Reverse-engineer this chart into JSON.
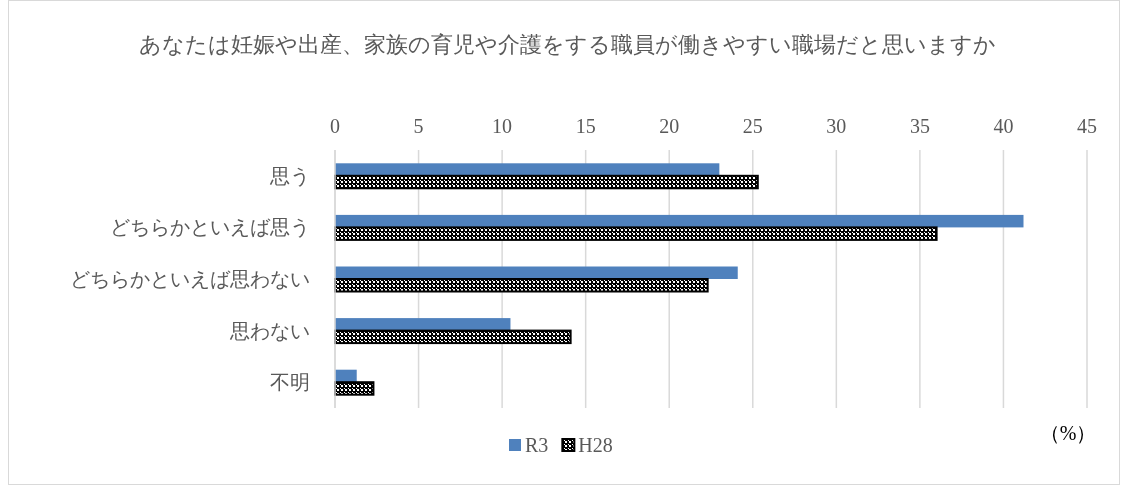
{
  "chart_data": {
    "type": "bar",
    "orientation": "horizontal",
    "title": "あなたは妊娠や出産、家族の育児や介護をする職員が働きやすい職場だと思いますか",
    "xlabel": "（%）",
    "categories": [
      "思う",
      "どちらかといえば思う",
      "どちらかといえば思わない",
      "思わない",
      "不明"
    ],
    "series": [
      {
        "name": "R3",
        "color": "#4f81bd",
        "values": [
          23.0,
          41.2,
          24.1,
          10.5,
          1.3
        ]
      },
      {
        "name": "H28",
        "color": "#000000",
        "values": [
          25.3,
          36.0,
          22.3,
          14.1,
          2.3
        ]
      }
    ],
    "xlim": [
      0,
      45
    ],
    "xticks": [
      0,
      5,
      10,
      15,
      20,
      25,
      30,
      35,
      40,
      45
    ],
    "grid": "x",
    "legend": "bottom"
  }
}
